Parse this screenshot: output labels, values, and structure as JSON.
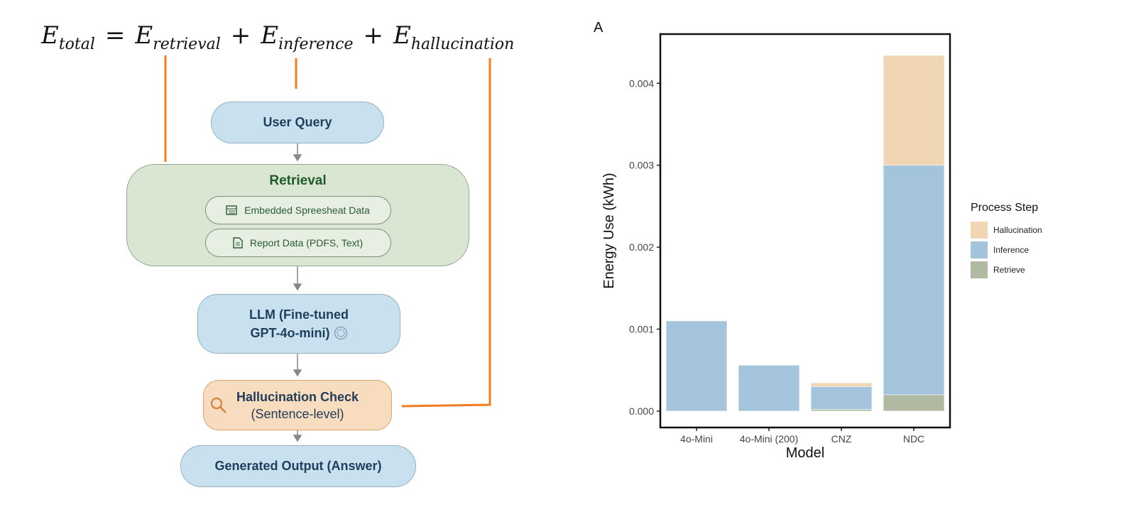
{
  "formula": {
    "E": "E",
    "terms": [
      "total",
      "retrieval",
      "inference",
      "hallucination"
    ],
    "equals": "=",
    "plus": "+"
  },
  "diagram": {
    "user_query": "User Query",
    "retrieval": {
      "title": "Retrieval",
      "items": [
        {
          "label": "Embedded Spreesheat Data",
          "icon": "spreadsheet-icon"
        },
        {
          "label": "Report Data (PDFS, Text)",
          "icon": "document-icon"
        }
      ]
    },
    "llm": {
      "line1": "LLM (Fine-tuned",
      "line2": "GPT-4o-mini)",
      "icon": "brain-icon"
    },
    "hallucination": {
      "line1": "Hallucination Check",
      "line2": "(Sentence-level)",
      "icon": "search-icon"
    },
    "output": "Generated Output (Answer)",
    "colors": {
      "connector": "#f47b20"
    }
  },
  "chart_data": {
    "panel_label": "A",
    "type": "bar",
    "stacked": true,
    "xlabel": "Model",
    "ylabel": "Energy Use (kWh)",
    "categories": [
      "4o-Mini",
      "4o-Mini (200)",
      "CNZ",
      "NDC"
    ],
    "ylim": [
      -0.0002,
      0.0046
    ],
    "yticks": [
      "0.000",
      "0.001",
      "0.002",
      "0.003",
      "0.004"
    ],
    "grid": false,
    "legend": {
      "title": "Process Step",
      "placement": "right",
      "entries": [
        "Hallucination",
        "Inference",
        "Retrieve"
      ]
    },
    "series": [
      {
        "name": "Retrieve",
        "color": "#b0baa3",
        "values": [
          0,
          0,
          2e-05,
          0.0002
        ]
      },
      {
        "name": "Inference",
        "color": "#a3c4da",
        "values": [
          0.0011,
          0.00056,
          0.00028,
          0.0028
        ]
      },
      {
        "name": "Hallucination",
        "color": "#f1d6b4",
        "values": [
          0,
          0,
          4.5e-05,
          0.00134
        ]
      }
    ]
  }
}
